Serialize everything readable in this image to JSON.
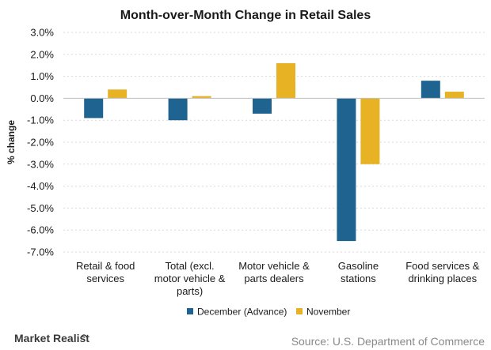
{
  "chart_data": {
    "type": "bar",
    "title": "Month-over-Month Change in Retail Sales",
    "xlabel": "",
    "ylabel": "% change",
    "ylim": [
      -7,
      3
    ],
    "yticks": [
      "3.0%",
      "2.0%",
      "1.0%",
      "0.0%",
      "-1.0%",
      "-2.0%",
      "-3.0%",
      "-4.0%",
      "-5.0%",
      "-6.0%",
      "-7.0%"
    ],
    "categories": [
      [
        "Retail & food",
        "services"
      ],
      [
        "Total (excl.",
        "motor vehicle &",
        "parts)"
      ],
      [
        "Motor vehicle &",
        "parts dealers"
      ],
      [
        "Gasoline",
        "stations"
      ],
      [
        "Food services &",
        "drinking places"
      ]
    ],
    "series": [
      {
        "name": "December (Advance)",
        "color": "#1f6391",
        "values": [
          -0.9,
          -1.0,
          -0.7,
          -6.5,
          0.8
        ]
      },
      {
        "name": "November",
        "color": "#e8b225",
        "values": [
          0.4,
          0.1,
          1.6,
          -3.0,
          0.3
        ]
      }
    ],
    "grid": true,
    "legend_position": "bottom-center"
  },
  "footer": {
    "brand": "Market Realist",
    "source": "Source: U.S. Department of Commerce"
  }
}
